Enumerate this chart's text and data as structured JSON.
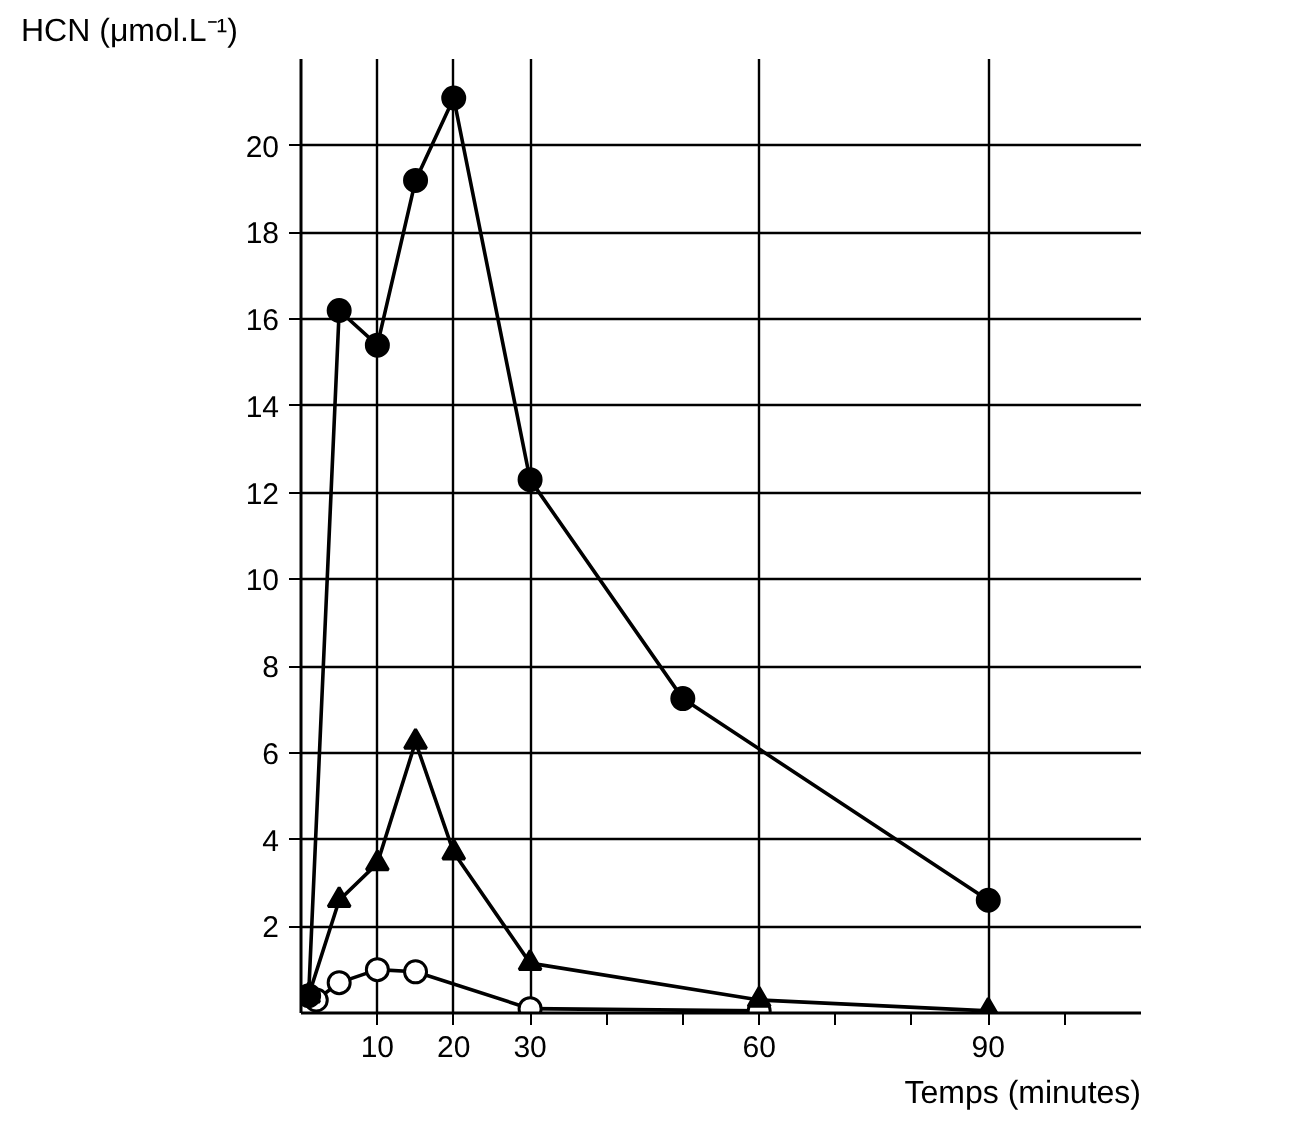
{
  "chart_data": {
    "type": "line",
    "xlabel": "Temps (minutes)",
    "ylabel": "HCN (μmol.L⁻¹)",
    "xlim": [
      0,
      110
    ],
    "ylim": [
      0,
      22
    ],
    "xticks": [
      10,
      20,
      30,
      {
        "value": 40,
        "label": null
      },
      {
        "value": 50,
        "label": null
      },
      60,
      {
        "value": 70,
        "label": null
      },
      {
        "value": 80,
        "label": null
      },
      90,
      {
        "value": 100,
        "label": null
      }
    ],
    "yticks": [
      2,
      4,
      6,
      8,
      10,
      12,
      14,
      16,
      18,
      20
    ],
    "grid": true,
    "line_style": "solid",
    "series": [
      {
        "color": "#000000",
        "marker": "circle",
        "x": [
          1,
          5,
          10,
          15,
          20,
          30,
          50,
          90
        ],
        "values": [
          0.4,
          16.2,
          15.4,
          19.2,
          21.1,
          12.3,
          7.25,
          2.6
        ]
      },
      {
        "color": "#000000",
        "marker": "triangle",
        "x": [
          1,
          5,
          10,
          15,
          20,
          30,
          60,
          90
        ],
        "values": [
          0.4,
          2.6,
          3.45,
          6.25,
          3.7,
          1.15,
          0.3,
          0.05
        ]
      },
      {
        "color": "#000000",
        "marker": "circle",
        "colors": [
          "#ffffff",
          "#ffffff",
          "#ffffff",
          "#ffffff",
          "#ffffff",
          "#ffffff"
        ],
        "x": [
          2,
          5,
          10,
          15,
          30,
          60
        ],
        "values": [
          0.3,
          0.7,
          1.0,
          0.95,
          0.1,
          0.05
        ]
      }
    ]
  }
}
